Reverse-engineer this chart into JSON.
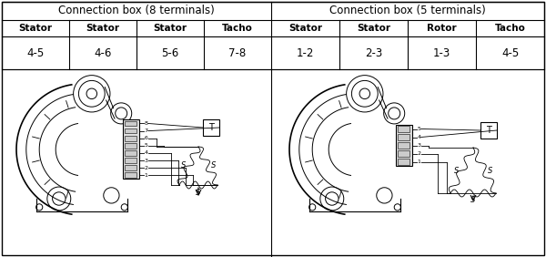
{
  "title_left": "Connection box (8 terminals)",
  "title_right": "Connection box (5 terminals)",
  "headers_left": [
    "Stator",
    "Stator",
    "Stator",
    "Tacho"
  ],
  "headers_right": [
    "Stator",
    "Stator",
    "Rotor",
    "Tacho"
  ],
  "values_left": [
    "4-5",
    "4-6",
    "5-6",
    "7-8"
  ],
  "values_right": [
    "1-2",
    "2-3",
    "1-3",
    "4-5"
  ],
  "bg_color": "#ffffff",
  "border_color": "#000000",
  "text_color": "#000000",
  "title_fontsize": 8.5,
  "header_fontsize": 7.5,
  "value_fontsize": 8.5
}
